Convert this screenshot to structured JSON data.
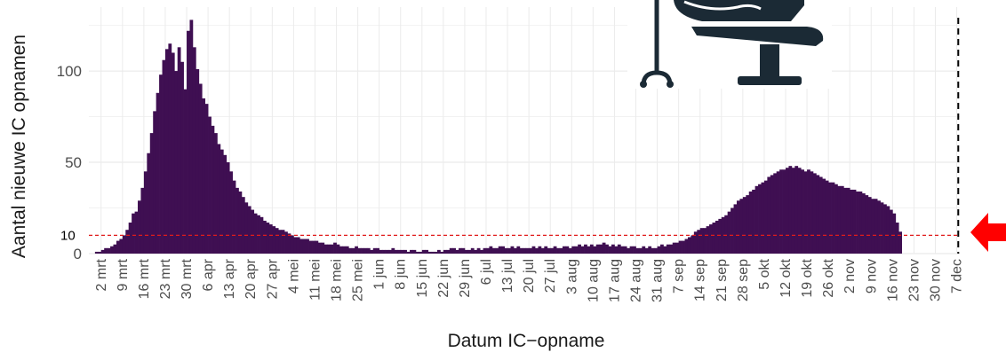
{
  "chart_data": {
    "type": "bar",
    "ylabel": "Aantal nieuwe IC opnamen",
    "xlabel": "Datum IC−opname",
    "ylim": [
      0,
      135
    ],
    "yticks": [
      0,
      50,
      100
    ],
    "x_start_date": "2020-02-27",
    "x_end_date": "2020-12-08",
    "xticks": [
      "2 mrt",
      "9 mrt",
      "16 mrt",
      "23 mrt",
      "30 mrt",
      "6 apr",
      "13 apr",
      "20 apr",
      "27 apr",
      "4 mei",
      "11 mei",
      "18 mei",
      "25 mei",
      "1 jun",
      "8 jun",
      "15 jun",
      "22 jun",
      "29 jun",
      "6 jul",
      "13 jul",
      "20 jul",
      "27 jul",
      "3 aug",
      "10 aug",
      "17 aug",
      "24 aug",
      "31 aug",
      "7 sep",
      "14 sep",
      "21 sep",
      "28 sep",
      "5 okt",
      "12 okt",
      "19 okt",
      "26 okt",
      "2 nov",
      "9 nov",
      "16 nov",
      "23 nov",
      "30 nov",
      "7 dec"
    ],
    "values": [
      0,
      0,
      1,
      1,
      2,
      3,
      3,
      4,
      5,
      7,
      8,
      10,
      13,
      17,
      22,
      23,
      29,
      36,
      45,
      55,
      66,
      78,
      88,
      98,
      106,
      112,
      115,
      110,
      100,
      113,
      105,
      90,
      122,
      128,
      113,
      101,
      93,
      85,
      82,
      75,
      70,
      66,
      60,
      57,
      54,
      50,
      45,
      40,
      36,
      34,
      31,
      28,
      26,
      24,
      22,
      21,
      20,
      18,
      17,
      16,
      15,
      14,
      13,
      13,
      12,
      11,
      10,
      9,
      9,
      8,
      8,
      8,
      7,
      7,
      7,
      6,
      6,
      5,
      5,
      5,
      6,
      5,
      4,
      4,
      4,
      3,
      3,
      4,
      3,
      3,
      3,
      3,
      2,
      3,
      3,
      2,
      2,
      2,
      2,
      3,
      2,
      2,
      2,
      2,
      1,
      2,
      2,
      1,
      1,
      2,
      2,
      1,
      1,
      1,
      2,
      1,
      2,
      2,
      3,
      3,
      2,
      3,
      3,
      2,
      2,
      3,
      2,
      3,
      2,
      3,
      3,
      4,
      3,
      3,
      4,
      4,
      3,
      3,
      4,
      3,
      4,
      3,
      3,
      3,
      3,
      4,
      3,
      4,
      3,
      4,
      3,
      3,
      4,
      3,
      3,
      4,
      4,
      3,
      4,
      4,
      5,
      4,
      5,
      4,
      5,
      4,
      5,
      5,
      6,
      5,
      4,
      5,
      4,
      5,
      4,
      4,
      3,
      4,
      4,
      3,
      3,
      4,
      3,
      4,
      3,
      3,
      4,
      5,
      4,
      5,
      5,
      6,
      6,
      7,
      7,
      8,
      9,
      10,
      12,
      13,
      14,
      14,
      15,
      16,
      17,
      18,
      19,
      20,
      21,
      23,
      25,
      27,
      29,
      30,
      31,
      32,
      34,
      35,
      37,
      38,
      39,
      40,
      42,
      43,
      44,
      45,
      46,
      46,
      47,
      48,
      47,
      48,
      47,
      46,
      45,
      46,
      45,
      44,
      43,
      42,
      41,
      40,
      39,
      39,
      38,
      37,
      37,
      36,
      36,
      35,
      35,
      34,
      34,
      33,
      32,
      31,
      30,
      30,
      29,
      28,
      27,
      26,
      24,
      22,
      17,
      12
    ],
    "reference_line": {
      "value": 10,
      "label": "10",
      "color": "#e01b1b"
    },
    "end_marker": "7 dec",
    "bar_color": "#3f0f52"
  },
  "colors": {
    "arrow": "#ff0000",
    "icon_dark": "#1b2a35"
  },
  "icons": {
    "hospital_bed": "hospital-bed-icon",
    "arrow": "arrow-left-icon"
  }
}
